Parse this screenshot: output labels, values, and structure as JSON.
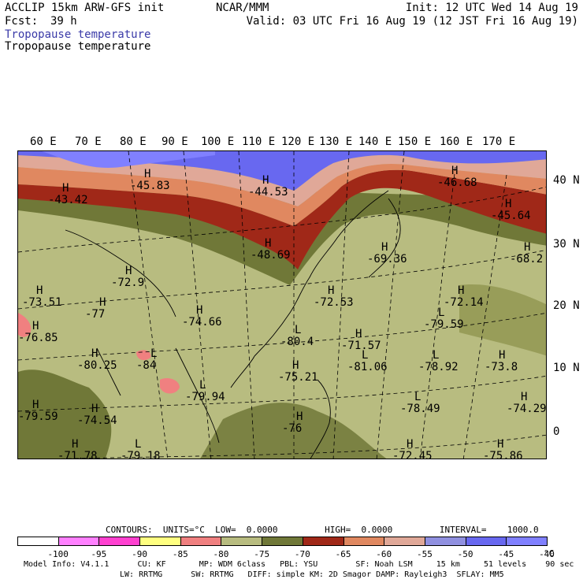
{
  "header": {
    "model": "ACCLIP 15km ARW-GFS init",
    "fcst_label": "Fcst:",
    "fcst_value": "39 h",
    "center": "NCAR/MMM",
    "init": "Init: 12 UTC Wed 14 Aug 19",
    "valid": "Valid: 03 UTC Fri 16 Aug 19 (12 JST Fri 16 Aug 19)",
    "field_title_colored": "Tropopause temperature",
    "field_title": "Tropopause temperature",
    "title_color": "#3a3aa8"
  },
  "lon_labels": [
    "60 E",
    "70 E",
    "80 E",
    "90 E",
    "100 E",
    "110 E",
    "120 E",
    "130 E",
    "140 E",
    "150 E",
    "160 E",
    "170 E"
  ],
  "lat_labels": [
    "40 N",
    "30 N",
    "20 N",
    "10 N",
    "0"
  ],
  "map_markers": [
    {
      "sym": "H",
      "val": "-43.42"
    },
    {
      "sym": "H",
      "val": "-45.83"
    },
    {
      "sym": "H",
      "val": "-44.53"
    },
    {
      "sym": "H",
      "val": "-46.68"
    },
    {
      "sym": "H",
      "val": "-45.64"
    },
    {
      "sym": "H",
      "val": "-48.69"
    },
    {
      "sym": "H",
      "val": "-69.36"
    },
    {
      "sym": "H",
      "val": "-68.2"
    },
    {
      "sym": "H",
      "val": "-72.9"
    },
    {
      "sym": "H",
      "val": "-73.51"
    },
    {
      "sym": "H",
      "val": "-77"
    },
    {
      "sym": "H",
      "val": "-74.66"
    },
    {
      "sym": "H",
      "val": "-72.53"
    },
    {
      "sym": "H",
      "val": "-72.14"
    },
    {
      "sym": "L",
      "val": "-79.59"
    },
    {
      "sym": "H",
      "val": "-76.85"
    },
    {
      "sym": "L",
      "val": "-80.4"
    },
    {
      "sym": "H",
      "val": "-71.57"
    },
    {
      "sym": "H",
      "val": "-80.25"
    },
    {
      "sym": "L",
      "val": "-84"
    },
    {
      "sym": "H",
      "val": "-75.21"
    },
    {
      "sym": "L",
      "val": "-81.06"
    },
    {
      "sym": "L",
      "val": "-78.92"
    },
    {
      "sym": "H",
      "val": "-73.8"
    },
    {
      "sym": "L",
      "val": "-79.94"
    },
    {
      "sym": "H",
      "val": "-79.59"
    },
    {
      "sym": "H",
      "val": "-74.54"
    },
    {
      "sym": "L",
      "val": "-78.49"
    },
    {
      "sym": "H",
      "val": "-74.29"
    },
    {
      "sym": "H",
      "val": "-76"
    },
    {
      "sym": "H",
      "val": "-72.45"
    },
    {
      "sym": "H",
      "val": "-71.78"
    },
    {
      "sym": "L",
      "val": "-79.18"
    },
    {
      "sym": "H",
      "val": "-75.86"
    }
  ],
  "contours_line": "CONTOURS:  UNITS=°C  LOW=  0.0000         HIGH=  0.0000         INTERVAL=    1000.0",
  "colorbar": {
    "boxes": [
      {
        "color": "#ffffff"
      },
      {
        "color": "#ff80ff"
      },
      {
        "color": "#ff40d0"
      },
      {
        "color": "#ffff80"
      },
      {
        "color": "#f08080"
      },
      {
        "color": "#b8bc80"
      },
      {
        "color": "#707838"
      },
      {
        "color": "#a02818"
      },
      {
        "color": "#e08860"
      },
      {
        "color": "#e0a898"
      },
      {
        "color": "#9090e0"
      },
      {
        "color": "#6868f0"
      },
      {
        "color": "#8080ff"
      }
    ],
    "labels": [
      "-100",
      "-95",
      "-90",
      "-85",
      "-80",
      "-75",
      "-70",
      "-65",
      "-60",
      "-55",
      "-50",
      "-45",
      "-40"
    ],
    "unit": "°C"
  },
  "footer": {
    "line1": "Model Info: V4.1.1      CU: KF       MP: WDM 6class   PBL: YSU        SF: Noah LSM     15 km     51 levels    90 sec",
    "line2": "LW: RRTMG      SW: RRTMG   DIFF: simple KM: 2D Smagor DAMP: Rayleigh3  SFLAY: MM5"
  }
}
